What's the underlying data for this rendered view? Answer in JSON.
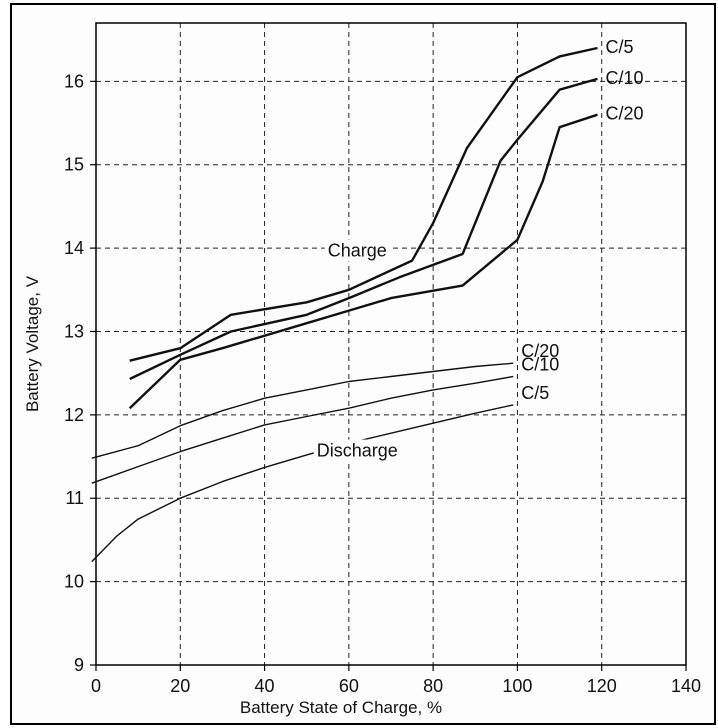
{
  "chart_data": {
    "type": "line",
    "title": "",
    "xlabel": "Battery State of Charge, %",
    "ylabel": "Battery Voltage, V",
    "xlim": [
      0,
      140
    ],
    "ylim": [
      9,
      16.7
    ],
    "xticks": [
      0,
      20,
      40,
      60,
      80,
      100,
      120,
      140
    ],
    "yticks": [
      9,
      10,
      11,
      12,
      13,
      14,
      15,
      16
    ],
    "grid": "dashed",
    "legend": "none",
    "annotations": [
      {
        "text": "Charge",
        "x": 62,
        "y": 13.9
      },
      {
        "text": "Discharge",
        "x": 62,
        "y": 11.5
      }
    ],
    "series": [
      {
        "name": "C/5",
        "group": "charge",
        "x": [
          8,
          20,
          32,
          50,
          60,
          75,
          80,
          88,
          100,
          110,
          119
        ],
        "y": [
          12.65,
          12.8,
          13.2,
          13.35,
          13.5,
          13.85,
          14.3,
          15.2,
          16.05,
          16.3,
          16.4
        ]
      },
      {
        "name": "C/10",
        "group": "charge",
        "x": [
          8,
          20,
          32,
          50,
          60,
          72,
          87,
          96,
          100,
          110,
          119
        ],
        "y": [
          12.43,
          12.72,
          13.0,
          13.2,
          13.4,
          13.65,
          13.93,
          15.05,
          15.3,
          15.9,
          16.03
        ]
      },
      {
        "name": "C/20",
        "group": "charge",
        "x": [
          8,
          20,
          30,
          50,
          60,
          70,
          87,
          100,
          106,
          110,
          119
        ],
        "y": [
          12.08,
          12.66,
          12.8,
          13.1,
          13.25,
          13.4,
          13.55,
          14.1,
          14.8,
          15.45,
          15.6
        ]
      },
      {
        "name": "C/20",
        "group": "discharge",
        "x": [
          -1,
          10,
          20,
          30,
          40,
          50,
          60,
          70,
          80,
          90,
          99
        ],
        "y": [
          11.48,
          11.63,
          11.87,
          12.05,
          12.2,
          12.3,
          12.4,
          12.46,
          12.52,
          12.58,
          12.62
        ]
      },
      {
        "name": "C/10",
        "group": "discharge",
        "x": [
          -1,
          10,
          20,
          30,
          40,
          50,
          60,
          70,
          80,
          90,
          99
        ],
        "y": [
          11.18,
          11.38,
          11.56,
          11.72,
          11.88,
          11.98,
          12.08,
          12.2,
          12.3,
          12.38,
          12.46
        ]
      },
      {
        "name": "C/5",
        "group": "discharge",
        "x": [
          -1,
          5,
          10,
          20,
          30,
          40,
          50,
          60,
          70,
          80,
          90,
          99
        ],
        "y": [
          10.24,
          10.55,
          10.75,
          11.0,
          11.2,
          11.37,
          11.52,
          11.66,
          11.78,
          11.9,
          12.02,
          12.12
        ]
      }
    ]
  }
}
